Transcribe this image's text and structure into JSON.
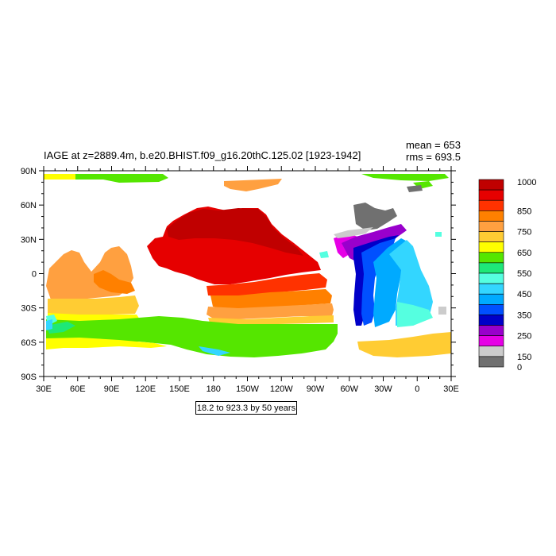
{
  "title": "IAGE at z=2889.4m, b.e20.BHIST.f09_g16.20thC.125.02 [1923-1942]",
  "stats": {
    "mean": "mean = 653",
    "rms": "rms = 693.5"
  },
  "range_note": "18.2 to 923.3 by 50 years",
  "map": {
    "x_ticks": [
      "30E",
      "60E",
      "90E",
      "120E",
      "150E",
      "180",
      "150W",
      "120W",
      "90W",
      "60W",
      "30W",
      "0",
      "30E"
    ],
    "y_ticks": [
      "90N",
      "60N",
      "30N",
      "0",
      "30S",
      "60S",
      "90S"
    ]
  },
  "colorbar": {
    "colors": [
      "#c00000",
      "#e60000",
      "#ff3200",
      "#ff8000",
      "#ffa040",
      "#ffcc33",
      "#ffff00",
      "#55e600",
      "#1ee878",
      "#55ffe0",
      "#33d6ff",
      "#00aaff",
      "#0050ff",
      "#0000c8",
      "#9900cc",
      "#e600e6",
      "#cccccc",
      "#707070"
    ],
    "labels": [
      "1000",
      "850",
      "750",
      "650",
      "550",
      "450",
      "350",
      "250",
      "150",
      "0"
    ],
    "label_indices": [
      0,
      3,
      5,
      7,
      9,
      11,
      13,
      15,
      17,
      18
    ]
  }
}
